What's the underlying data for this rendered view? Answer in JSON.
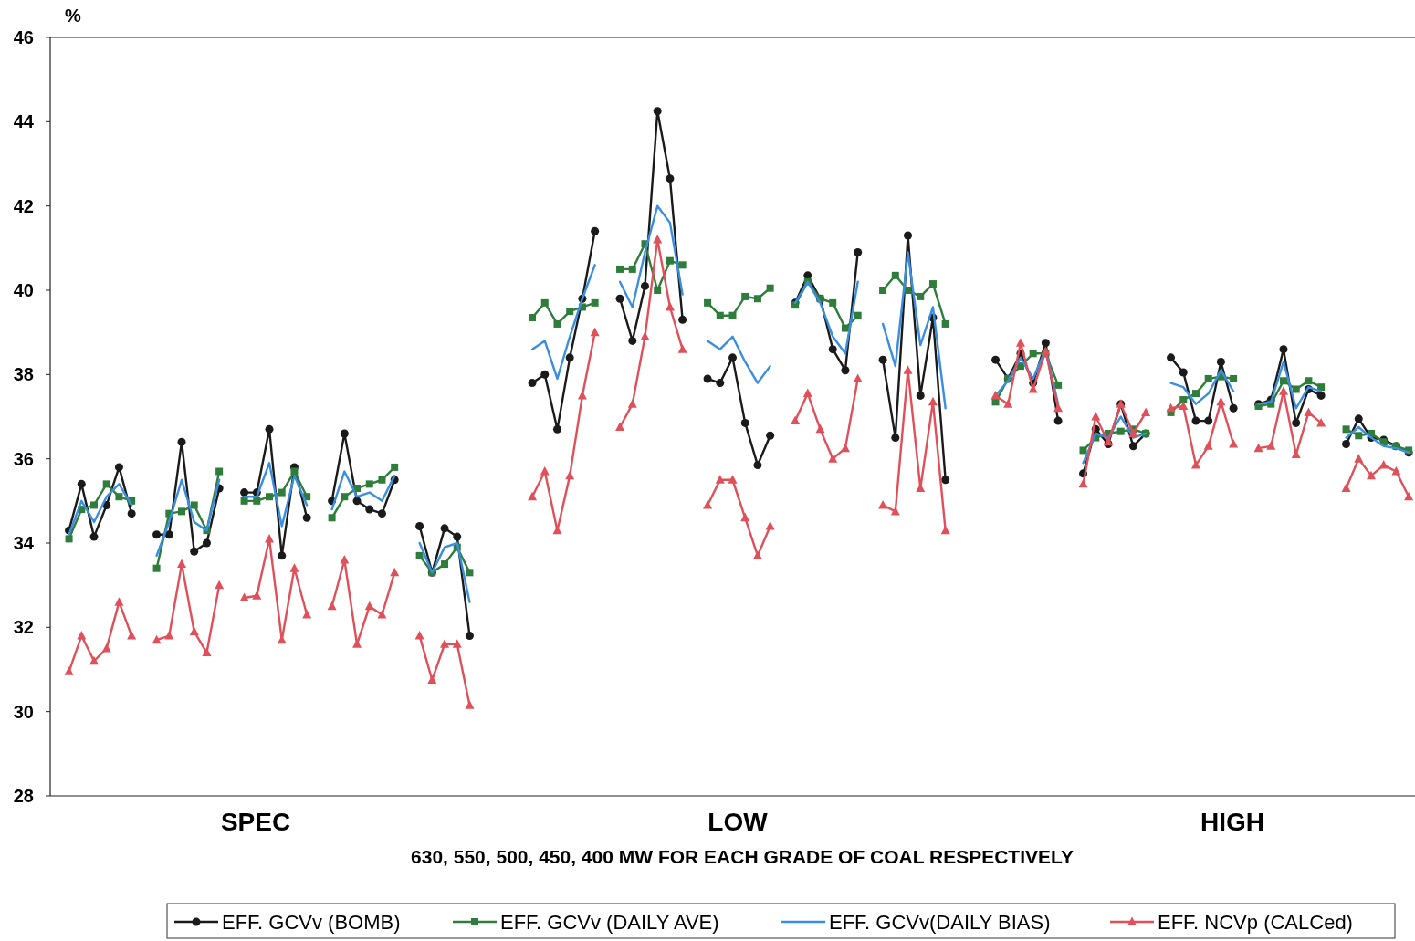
{
  "chart_data": {
    "type": "line",
    "ylabel": "%",
    "xlabel": "630, 550, 500, 450, 400 MW FOR EACH GRADE OF COAL RESPECTIVELY",
    "annotations": [
      "SPEC",
      "LOW",
      "HIGH"
    ],
    "categories": [
      null,
      null,
      null,
      null,
      null,
      null,
      null,
      null,
      null,
      null,
      null,
      null,
      null,
      null,
      null,
      null,
      null,
      null,
      null,
      null,
      null,
      null,
      null,
      null,
      null,
      null,
      null,
      null,
      null,
      null,
      null,
      null,
      null,
      null,
      null,
      null,
      null,
      null,
      null,
      null,
      null,
      null,
      null,
      null,
      null,
      null,
      null,
      null,
      null,
      null,
      null,
      null,
      null,
      null,
      null,
      null,
      null,
      null,
      null,
      null,
      null,
      null,
      null,
      null,
      null,
      null,
      null,
      null,
      null,
      null,
      null,
      null,
      null,
      null,
      null,
      null,
      null,
      null,
      null,
      null,
      null,
      null,
      null,
      null,
      null,
      null,
      null,
      null,
      null,
      null,
      null,
      null,
      null,
      null,
      null,
      null,
      null,
      null,
      null,
      null,
      null,
      null,
      null,
      null,
      null,
      null,
      null,
      null,
      null
    ],
    "ylim": [
      28,
      46
    ],
    "yticks": [
      28,
      30,
      32,
      34,
      36,
      38,
      40,
      42,
      44,
      46
    ],
    "grid": false,
    "legend": "bottom",
    "tick_labels": "y",
    "series": [
      {
        "name": "EFF. GCVv (BOMB)",
        "color": "#1a1a1a",
        "marker": "circle",
        "values": [
          null,
          34.3,
          35.4,
          34.15,
          34.9,
          35.8,
          34.7,
          null,
          34.2,
          34.2,
          36.4,
          33.8,
          34.0,
          35.3,
          null,
          35.2,
          35.2,
          36.7,
          33.7,
          35.8,
          34.6,
          null,
          35.0,
          36.6,
          35.0,
          34.8,
          34.7,
          35.5,
          null,
          34.4,
          33.3,
          34.35,
          34.15,
          31.8,
          null,
          null,
          null,
          null,
          37.8,
          38.0,
          36.7,
          38.4,
          39.8,
          41.4,
          null,
          39.8,
          38.8,
          40.1,
          44.25,
          42.65,
          39.3,
          null,
          37.9,
          37.8,
          38.4,
          36.85,
          35.85,
          36.55,
          null,
          39.7,
          40.35,
          39.8,
          38.6,
          38.1,
          40.9,
          null,
          38.35,
          36.5,
          41.3,
          37.5,
          39.35,
          35.5,
          null,
          null,
          null,
          38.35,
          37.9,
          38.5,
          37.8,
          38.75,
          36.9,
          null,
          35.65,
          36.7,
          36.35,
          37.3,
          36.3,
          36.6,
          null,
          38.4,
          38.05,
          36.9,
          36.9,
          38.3,
          37.2,
          null,
          37.3,
          37.4,
          38.6,
          36.85,
          37.65,
          37.5,
          null,
          36.35,
          36.95,
          36.5,
          36.45,
          36.3,
          36.15
        ]
      },
      {
        "name": "EFF. GCVv (DAILY AVE)",
        "color": "#2e7d3a",
        "marker": "square",
        "values": [
          null,
          34.1,
          34.8,
          34.9,
          35.4,
          35.1,
          35.0,
          null,
          33.4,
          34.7,
          34.75,
          34.9,
          34.3,
          35.7,
          null,
          35.0,
          35.0,
          35.1,
          35.2,
          35.7,
          35.1,
          null,
          34.6,
          35.1,
          35.3,
          35.4,
          35.5,
          35.8,
          null,
          33.7,
          33.3,
          33.5,
          33.9,
          33.3,
          null,
          null,
          null,
          null,
          39.35,
          39.7,
          39.2,
          39.5,
          39.6,
          39.7,
          null,
          40.5,
          40.5,
          41.1,
          40.0,
          40.7,
          40.6,
          null,
          39.7,
          39.4,
          39.4,
          39.85,
          39.8,
          40.05,
          null,
          39.65,
          40.2,
          39.8,
          39.7,
          39.1,
          39.4,
          null,
          40.0,
          40.35,
          40.0,
          39.85,
          40.15,
          39.2,
          null,
          null,
          null,
          37.35,
          37.9,
          38.2,
          38.5,
          38.5,
          37.75,
          null,
          36.2,
          36.5,
          36.6,
          36.65,
          36.7,
          36.6,
          null,
          37.1,
          37.4,
          37.55,
          37.9,
          37.95,
          37.9,
          null,
          37.25,
          37.3,
          37.85,
          37.65,
          37.85,
          37.7,
          null,
          36.7,
          36.55,
          36.6,
          36.4,
          36.3,
          36.2
        ]
      },
      {
        "name": "EFF. GCVv(DAILY BIAS)",
        "color": "#3a8ee0",
        "marker": "none",
        "values": [
          null,
          34.2,
          35.0,
          34.5,
          35.1,
          35.4,
          34.9,
          null,
          33.7,
          34.5,
          35.5,
          34.5,
          34.3,
          35.5,
          null,
          35.1,
          35.1,
          35.9,
          34.4,
          35.6,
          34.9,
          null,
          34.8,
          35.7,
          35.1,
          35.2,
          35.0,
          35.6,
          null,
          34.0,
          33.3,
          33.9,
          34.0,
          32.6,
          null,
          null,
          null,
          null,
          38.6,
          38.8,
          37.9,
          38.9,
          39.8,
          40.6,
          null,
          40.2,
          39.6,
          40.9,
          42.0,
          41.6,
          39.9,
          null,
          38.8,
          38.6,
          38.9,
          38.3,
          37.8,
          38.2,
          null,
          39.7,
          40.2,
          39.7,
          38.9,
          38.5,
          40.2,
          null,
          39.2,
          38.2,
          40.9,
          38.7,
          39.6,
          37.2,
          null,
          null,
          null,
          37.5,
          37.85,
          38.4,
          37.9,
          38.6,
          37.3,
          null,
          35.9,
          36.6,
          36.5,
          37.0,
          36.5,
          36.6,
          null,
          37.8,
          37.7,
          37.3,
          37.55,
          38.1,
          37.6,
          null,
          37.3,
          37.35,
          38.3,
          37.2,
          37.7,
          37.6,
          null,
          36.5,
          36.75,
          36.5,
          36.3,
          36.25,
          36.15
        ]
      },
      {
        "name": "EFF. NCVp (CALCed)",
        "color": "#e0505a",
        "marker": "triangle",
        "values": [
          null,
          30.95,
          31.8,
          31.2,
          31.5,
          32.6,
          31.8,
          null,
          31.7,
          31.8,
          33.5,
          31.9,
          31.4,
          33.0,
          null,
          32.7,
          32.75,
          34.1,
          31.7,
          33.4,
          32.3,
          null,
          32.5,
          33.6,
          31.6,
          32.5,
          32.3,
          33.3,
          null,
          31.8,
          30.75,
          31.6,
          31.6,
          30.15,
          null,
          null,
          null,
          null,
          35.1,
          35.7,
          34.3,
          35.6,
          37.5,
          39.0,
          null,
          36.75,
          37.3,
          38.9,
          41.2,
          39.6,
          38.6,
          null,
          34.9,
          35.5,
          35.5,
          34.6,
          33.7,
          34.4,
          null,
          36.9,
          37.55,
          36.7,
          36.0,
          36.25,
          37.9,
          null,
          34.9,
          34.75,
          38.1,
          35.3,
          37.35,
          34.3,
          null,
          null,
          null,
          37.5,
          37.3,
          38.75,
          37.65,
          38.55,
          37.2,
          null,
          35.4,
          37.0,
          36.4,
          37.3,
          36.6,
          37.1,
          null,
          37.2,
          37.25,
          35.85,
          36.3,
          37.35,
          36.35,
          null,
          36.25,
          36.3,
          37.6,
          36.1,
          37.1,
          36.85,
          null,
          35.3,
          36.0,
          35.6,
          35.85,
          35.7,
          35.1
        ]
      }
    ]
  }
}
